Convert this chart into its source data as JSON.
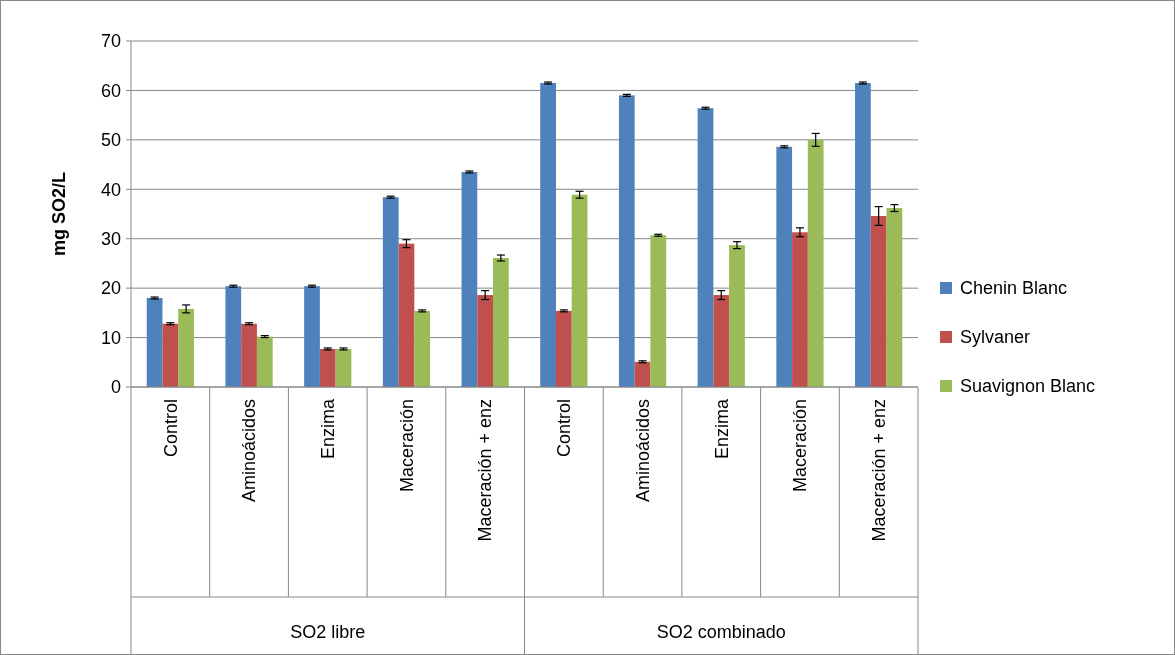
{
  "chart_data": {
    "type": "bar",
    "ylabel": "mg SO2/L",
    "categories": [
      "Control",
      "Aminoácidos",
      "Enzima",
      "Maceración",
      "Maceración + enz",
      "Control",
      "Aminoácidos",
      "Enzima",
      "Maceración",
      "Maceración + enz"
    ],
    "annotations": [
      "SO2 libre",
      "SO2 combinado"
    ],
    "series": [
      {
        "name": "Chenin Blanc",
        "color": "#4f81bd",
        "values": [
          18,
          20.4,
          20.4,
          38.4,
          43.5,
          61.5,
          59,
          56.4,
          48.6,
          61.5
        ],
        "errors": [
          0.2,
          0.2,
          0.2,
          0.2,
          0.2,
          0.2,
          0.2,
          0.2,
          0.2,
          0.2
        ]
      },
      {
        "name": "Sylvaner",
        "color": "#c0504d",
        "values": [
          12.8,
          12.8,
          7.7,
          29,
          18.6,
          15.4,
          5.1,
          18.6,
          31.3,
          34.6
        ],
        "errors": [
          0.2,
          0.2,
          0.2,
          0.8,
          0.9,
          0.2,
          0.2,
          0.9,
          0.9,
          1.9
        ]
      },
      {
        "name": "Suavignon Blanc",
        "color": "#9bbb59",
        "values": [
          15.8,
          10.2,
          7.7,
          15.4,
          26.1,
          38.9,
          30.7,
          28.7,
          50,
          36.2
        ],
        "errors": [
          0.8,
          0.2,
          0.2,
          0.2,
          0.6,
          0.7,
          0.2,
          0.7,
          1.3,
          0.7
        ]
      }
    ],
    "ylim": [
      0,
      70
    ],
    "yticks": [
      0,
      10,
      20,
      30,
      40,
      50,
      60,
      70
    ],
    "grid": "y",
    "legend": "right"
  }
}
